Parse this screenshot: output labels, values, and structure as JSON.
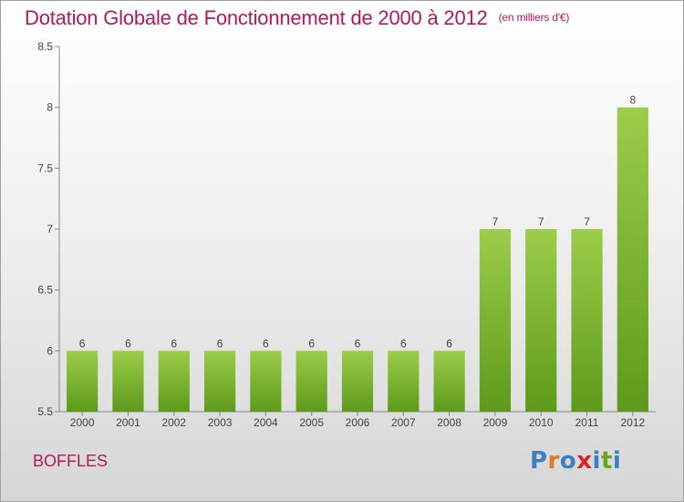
{
  "title": "Dotation Globale de Fonctionnement de 2000 à 2012",
  "subtitle": "(en milliers d'€)",
  "commune": "BOFFLES",
  "logo": {
    "letters": [
      "P",
      "r",
      "o",
      "x",
      "i",
      "t",
      "i"
    ],
    "colors": [
      "#3b7fc4",
      "#e07a1f",
      "#3b7fc4",
      "#d8232a",
      "#3b7fc4",
      "#6aa51f",
      "#3b7fc4"
    ]
  },
  "chart_data": {
    "type": "bar",
    "categories": [
      "2000",
      "2001",
      "2002",
      "2003",
      "2004",
      "2005",
      "2006",
      "2007",
      "2008",
      "2009",
      "2010",
      "2011",
      "2012"
    ],
    "values": [
      6,
      6,
      6,
      6,
      6,
      6,
      6,
      6,
      6,
      7,
      7,
      7,
      8
    ],
    "data_labels": [
      "6",
      "6",
      "6",
      "6",
      "6",
      "6",
      "6",
      "6",
      "6",
      "7",
      "7",
      "7",
      "8"
    ],
    "ylim": [
      5.5,
      8.5
    ],
    "yticks": [
      5.5,
      6,
      6.5,
      7,
      7.5,
      8,
      8.5
    ],
    "ytick_labels": [
      "5.5",
      "6",
      "6.5",
      "7",
      "7.5",
      "8",
      "8.5"
    ],
    "grid": false,
    "bar_color_top": "#9ccc4a",
    "bar_color_bottom": "#5e9a1a"
  }
}
